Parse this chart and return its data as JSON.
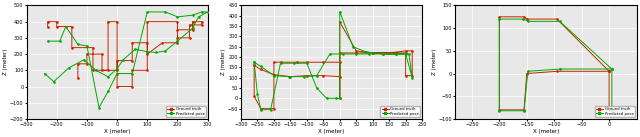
{
  "plots": [
    {
      "xlim": [
        -300,
        300
      ],
      "ylim": [
        -200,
        500
      ],
      "xticks": [
        -300,
        -200,
        -100,
        0,
        100,
        200,
        300
      ],
      "yticks": [
        -200,
        -100,
        0,
        100,
        200,
        300,
        400,
        500
      ],
      "xlabel": "X (meter)",
      "ylabel": "Z (meter)",
      "gt_x": [
        -230,
        -230,
        -200,
        -200,
        -150,
        -150,
        -130,
        -80,
        -80,
        -30,
        -30,
        0,
        0,
        0,
        50,
        50,
        100,
        100,
        200,
        200,
        230,
        230,
        280,
        280,
        250,
        250,
        200,
        200,
        150,
        150,
        100,
        100,
        50,
        50,
        0,
        0,
        -50,
        -50,
        -100,
        -100,
        -130,
        -130
      ],
      "gt_z": [
        370,
        400,
        400,
        370,
        370,
        240,
        240,
        240,
        100,
        100,
        400,
        400,
        0,
        0,
        100,
        100,
        100,
        400,
        400,
        300,
        300,
        380,
        380,
        400,
        400,
        350,
        350,
        270,
        270,
        200,
        200,
        270,
        270,
        160,
        160,
        100,
        100,
        200,
        200,
        140,
        140,
        50
      ],
      "pred_x": [
        -230,
        -200,
        -200,
        -170,
        -170,
        -120,
        -120,
        -70,
        -70,
        -30,
        0,
        0,
        50,
        50,
        100,
        100,
        160,
        200,
        240,
        280,
        300,
        280,
        280,
        250,
        220,
        200,
        170,
        150,
        120,
        100,
        70,
        50,
        20,
        0,
        -30,
        -50,
        -70,
        -100,
        -150,
        -180,
        -220,
        -240
      ],
      "pred_z": [
        280,
        280,
        370,
        370,
        260,
        260,
        250,
        250,
        -130,
        -130,
        -30,
        80,
        80,
        460,
        460,
        430,
        430,
        430,
        430,
        470,
        470,
        430,
        370,
        370,
        280,
        280,
        220,
        220,
        210,
        210,
        230,
        230,
        170,
        110,
        60,
        100,
        100,
        170,
        160,
        110,
        30,
        80
      ]
    },
    {
      "xlim": [
        -300,
        250
      ],
      "ylim": [
        -100,
        450
      ],
      "xticks": [
        -300,
        -250,
        -200,
        -150,
        -100,
        -50,
        0,
        50,
        100,
        150,
        200,
        250
      ],
      "yticks": [
        -50,
        0,
        50,
        100,
        150,
        200,
        250,
        300,
        350,
        400,
        450
      ],
      "xlabel": "X (meter)",
      "ylabel": "Z (meter)",
      "gt_x": [
        -260,
        -260,
        -240,
        -240,
        -200,
        -200,
        -180,
        -180,
        -130,
        -130,
        -100,
        -50,
        0,
        0,
        0,
        50,
        100,
        150,
        200,
        200,
        220,
        220,
        200,
        200,
        150,
        100,
        50,
        0,
        0,
        -50,
        -100,
        -150,
        -200,
        -230,
        -260
      ],
      "gt_z": [
        160,
        10,
        -50,
        160,
        160,
        175,
        175,
        0,
        0,
        175,
        175,
        175,
        0,
        0,
        370,
        230,
        220,
        220,
        220,
        110,
        110,
        230,
        230,
        220,
        220,
        220,
        220,
        220,
        105,
        110,
        110,
        105,
        115,
        140,
        160
      ],
      "pred_x": [
        -260,
        -260,
        -250,
        -230,
        -210,
        -190,
        -170,
        -130,
        -100,
        -70,
        -50,
        -30,
        -10,
        0,
        0,
        0,
        40,
        80,
        120,
        160,
        200,
        220,
        220,
        200,
        170,
        130,
        100,
        60,
        20,
        -20,
        -60,
        -100,
        -140,
        -180,
        -220,
        -260
      ],
      "pred_z": [
        175,
        20,
        -55,
        -55,
        170,
        170,
        170,
        170,
        170,
        170,
        50,
        0,
        0,
        0,
        420,
        420,
        250,
        230,
        220,
        215,
        215,
        215,
        100,
        220,
        220,
        215,
        215,
        215,
        215,
        215,
        110,
        105,
        105,
        110,
        155,
        175
      ]
    },
    {
      "xlim": [
        -280,
        50
      ],
      "ylim": [
        -100,
        150
      ],
      "xticks": [
        -250,
        -200,
        -150,
        -100,
        -50,
        0
      ],
      "yticks": [
        -100,
        -50,
        0,
        50,
        100,
        150
      ],
      "xlabel": "X (meter)",
      "ylabel": "Z (meter)",
      "gt_x": [
        0,
        0,
        -10,
        -100,
        -150,
        -155,
        -200,
        -200,
        -155,
        -150,
        -100,
        -95,
        0,
        0
      ],
      "gt_z": [
        5,
        5,
        5,
        5,
        0,
        -80,
        -80,
        125,
        125,
        120,
        120,
        5,
        5,
        -80
      ],
      "pred_x": [
        0,
        5,
        0,
        -100,
        -148,
        -155,
        -200,
        -200,
        -155,
        -150,
        -95,
        -90,
        5,
        0
      ],
      "pred_z": [
        10,
        10,
        10,
        10,
        5,
        -82,
        -82,
        120,
        120,
        115,
        115,
        10,
        10,
        -82
      ]
    }
  ],
  "gt_color": "#cc2200",
  "pred_color": "#00aa00",
  "gt_label": "Ground truth",
  "pred_label": "Predicted pose",
  "bg_color": "#e8e8e8",
  "grid_color": "white"
}
